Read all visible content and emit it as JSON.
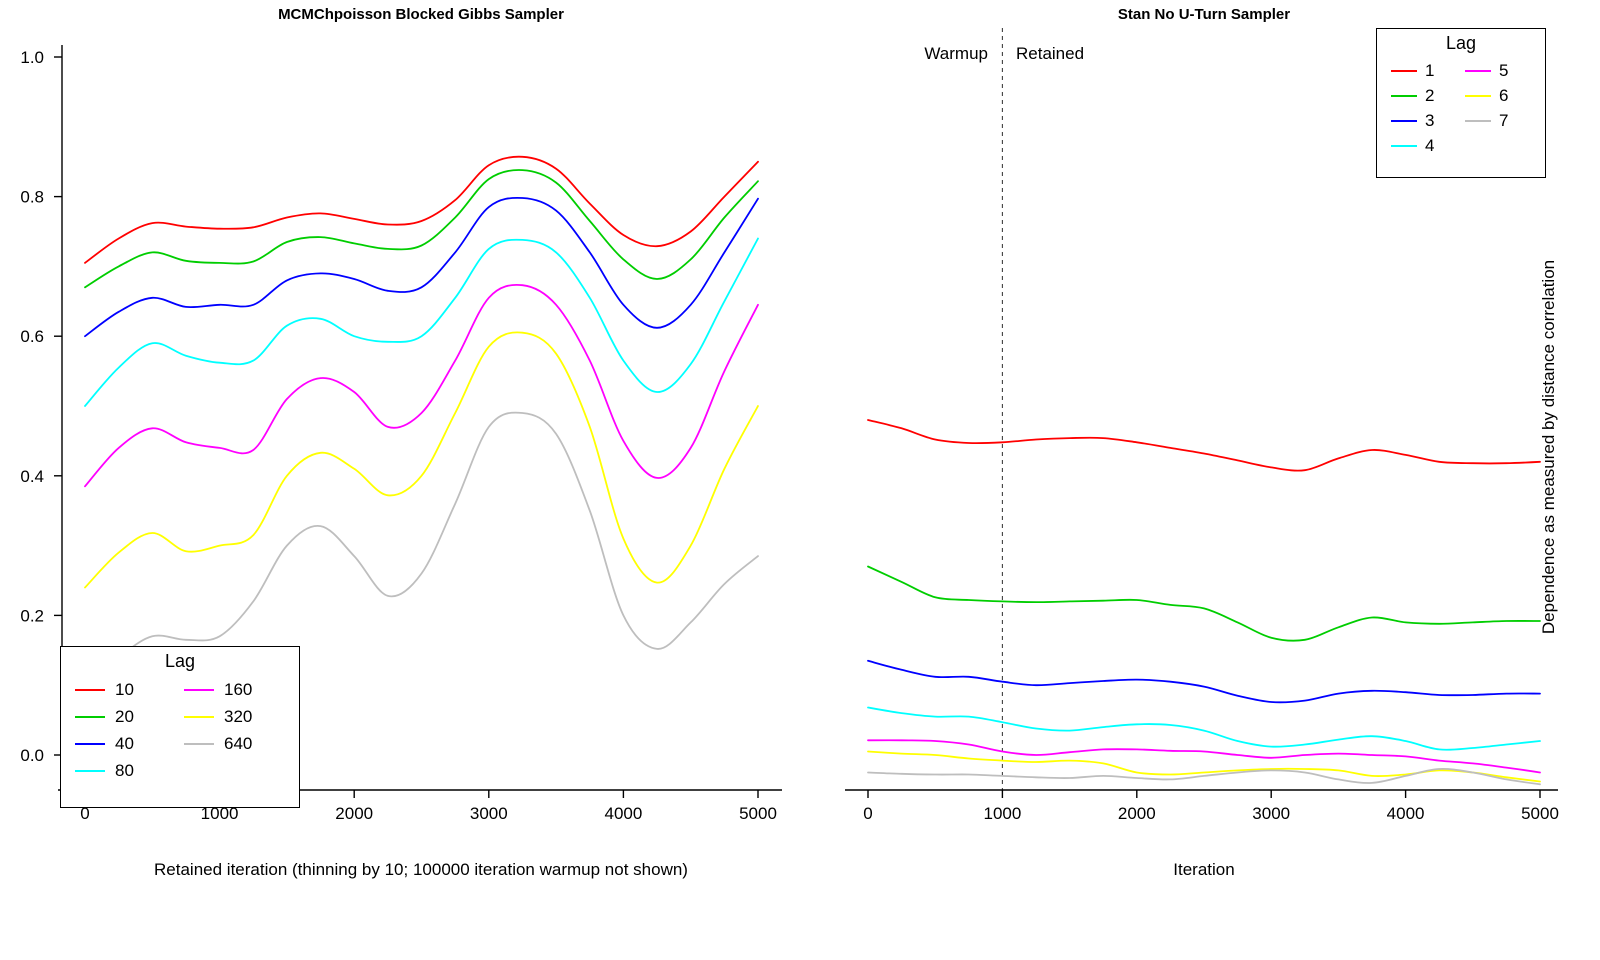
{
  "page": {
    "background": "#ffffff"
  },
  "chart_data": {
    "note": "see charts"
  },
  "charts": [
    {
      "type": "line",
      "title": "MCMChpoisson Blocked Gibbs Sampler",
      "xlabel": "Retained iteration (thinning by 10; 100000 iteration warmup not shown)",
      "ylabel": "",
      "xlim": [
        0,
        5000
      ],
      "ylim": [
        0,
        1
      ],
      "xticks": [
        0,
        1000,
        2000,
        3000,
        4000,
        5000
      ],
      "ytick_labels": [
        "0.0",
        "0.2",
        "0.4",
        "0.6",
        "0.8",
        "1.0"
      ],
      "grid": false,
      "legend_title": "Lag",
      "legend_position": "bottom-left",
      "x": [
        0,
        250,
        500,
        750,
        1000,
        1250,
        1500,
        1750,
        2000,
        2250,
        2500,
        2750,
        3000,
        3250,
        3500,
        3750,
        4000,
        4250,
        4500,
        4750,
        5000
      ],
      "series": [
        {
          "name": "10",
          "color": "#FF0000",
          "values": [
            0.705,
            0.74,
            0.762,
            0.757,
            0.754,
            0.756,
            0.77,
            0.776,
            0.768,
            0.76,
            0.765,
            0.795,
            0.845,
            0.857,
            0.84,
            0.79,
            0.745,
            0.729,
            0.75,
            0.8,
            0.85
          ]
        },
        {
          "name": "20",
          "color": "#00CD00",
          "values": [
            0.67,
            0.7,
            0.72,
            0.708,
            0.705,
            0.707,
            0.735,
            0.742,
            0.733,
            0.725,
            0.73,
            0.77,
            0.825,
            0.838,
            0.82,
            0.765,
            0.71,
            0.682,
            0.71,
            0.77,
            0.822
          ]
        },
        {
          "name": "40",
          "color": "#0000FF",
          "values": [
            0.6,
            0.635,
            0.655,
            0.642,
            0.645,
            0.645,
            0.68,
            0.69,
            0.682,
            0.665,
            0.67,
            0.72,
            0.785,
            0.798,
            0.78,
            0.72,
            0.645,
            0.612,
            0.645,
            0.72,
            0.797
          ]
        },
        {
          "name": "80",
          "color": "#00FFFF",
          "values": [
            0.5,
            0.555,
            0.59,
            0.572,
            0.562,
            0.565,
            0.615,
            0.625,
            0.6,
            0.592,
            0.6,
            0.655,
            0.725,
            0.738,
            0.72,
            0.655,
            0.565,
            0.52,
            0.56,
            0.65,
            0.74
          ]
        },
        {
          "name": "160",
          "color": "#FF00FF",
          "values": [
            0.385,
            0.44,
            0.468,
            0.448,
            0.44,
            0.437,
            0.51,
            0.54,
            0.52,
            0.47,
            0.49,
            0.565,
            0.655,
            0.673,
            0.645,
            0.565,
            0.45,
            0.397,
            0.44,
            0.55,
            0.645
          ]
        },
        {
          "name": "320",
          "color": "#FFFF00",
          "values": [
            0.24,
            0.29,
            0.318,
            0.292,
            0.3,
            0.315,
            0.4,
            0.433,
            0.41,
            0.372,
            0.4,
            0.49,
            0.585,
            0.605,
            0.575,
            0.47,
            0.31,
            0.247,
            0.3,
            0.41,
            0.5
          ]
        },
        {
          "name": "640",
          "color": "#BEBEBE",
          "values": [
            0.1,
            0.14,
            0.17,
            0.165,
            0.17,
            0.22,
            0.3,
            0.328,
            0.285,
            0.228,
            0.26,
            0.36,
            0.47,
            0.49,
            0.46,
            0.35,
            0.2,
            0.152,
            0.19,
            0.245,
            0.285
          ]
        }
      ]
    },
    {
      "type": "line",
      "title": "Stan No U-Turn Sampler",
      "xlabel": "Iteration",
      "ylabel_right": "Dependence as measured by distance correlation",
      "xlim": [
        0,
        5000
      ],
      "ylim": [
        0,
        1
      ],
      "xticks": [
        0,
        1000,
        2000,
        3000,
        4000,
        5000
      ],
      "ytick_labels": [],
      "grid": false,
      "legend_title": "Lag",
      "legend_position": "top-right",
      "annotations": {
        "vline_x": 1000,
        "left_label": "Warmup",
        "right_label": "Retained"
      },
      "x": [
        0,
        250,
        500,
        750,
        1000,
        1250,
        1500,
        1750,
        2000,
        2250,
        2500,
        2750,
        3000,
        3250,
        3500,
        3750,
        4000,
        4250,
        4500,
        4750,
        5000
      ],
      "series": [
        {
          "name": "1",
          "color": "#FF0000",
          "values": [
            0.48,
            0.468,
            0.452,
            0.447,
            0.448,
            0.452,
            0.454,
            0.454,
            0.448,
            0.44,
            0.432,
            0.422,
            0.412,
            0.408,
            0.425,
            0.437,
            0.43,
            0.42,
            0.418,
            0.418,
            0.42
          ]
        },
        {
          "name": "2",
          "color": "#00CD00",
          "values": [
            0.27,
            0.248,
            0.226,
            0.222,
            0.22,
            0.219,
            0.22,
            0.221,
            0.222,
            0.215,
            0.21,
            0.19,
            0.168,
            0.165,
            0.183,
            0.197,
            0.19,
            0.188,
            0.19,
            0.192,
            0.192
          ]
        },
        {
          "name": "3",
          "color": "#0000FF",
          "values": [
            0.135,
            0.122,
            0.112,
            0.112,
            0.105,
            0.1,
            0.103,
            0.106,
            0.108,
            0.105,
            0.098,
            0.085,
            0.076,
            0.078,
            0.088,
            0.092,
            0.09,
            0.086,
            0.086,
            0.088,
            0.088
          ]
        },
        {
          "name": "4",
          "color": "#00FFFF",
          "values": [
            0.068,
            0.06,
            0.055,
            0.055,
            0.047,
            0.038,
            0.035,
            0.04,
            0.044,
            0.043,
            0.035,
            0.02,
            0.012,
            0.015,
            0.022,
            0.027,
            0.02,
            0.008,
            0.01,
            0.015,
            0.02
          ]
        },
        {
          "name": "5",
          "color": "#FF00FF",
          "values": [
            0.021,
            0.021,
            0.02,
            0.015,
            0.005,
            0.0,
            0.004,
            0.008,
            0.008,
            0.006,
            0.005,
            0.0,
            -0.004,
            0.0,
            0.002,
            0.0,
            -0.002,
            -0.008,
            -0.012,
            -0.018,
            -0.025
          ]
        },
        {
          "name": "6",
          "color": "#FFFF00",
          "values": [
            0.005,
            0.002,
            0.0,
            -0.005,
            -0.008,
            -0.01,
            -0.008,
            -0.012,
            -0.025,
            -0.028,
            -0.025,
            -0.022,
            -0.02,
            -0.02,
            -0.022,
            -0.03,
            -0.028,
            -0.022,
            -0.025,
            -0.032,
            -0.038
          ]
        },
        {
          "name": "7",
          "color": "#BEBEBE",
          "values": [
            -0.025,
            -0.027,
            -0.028,
            -0.028,
            -0.03,
            -0.032,
            -0.033,
            -0.03,
            -0.033,
            -0.035,
            -0.03,
            -0.025,
            -0.022,
            -0.025,
            -0.035,
            -0.04,
            -0.03,
            -0.02,
            -0.025,
            -0.035,
            -0.042
          ]
        }
      ]
    }
  ]
}
